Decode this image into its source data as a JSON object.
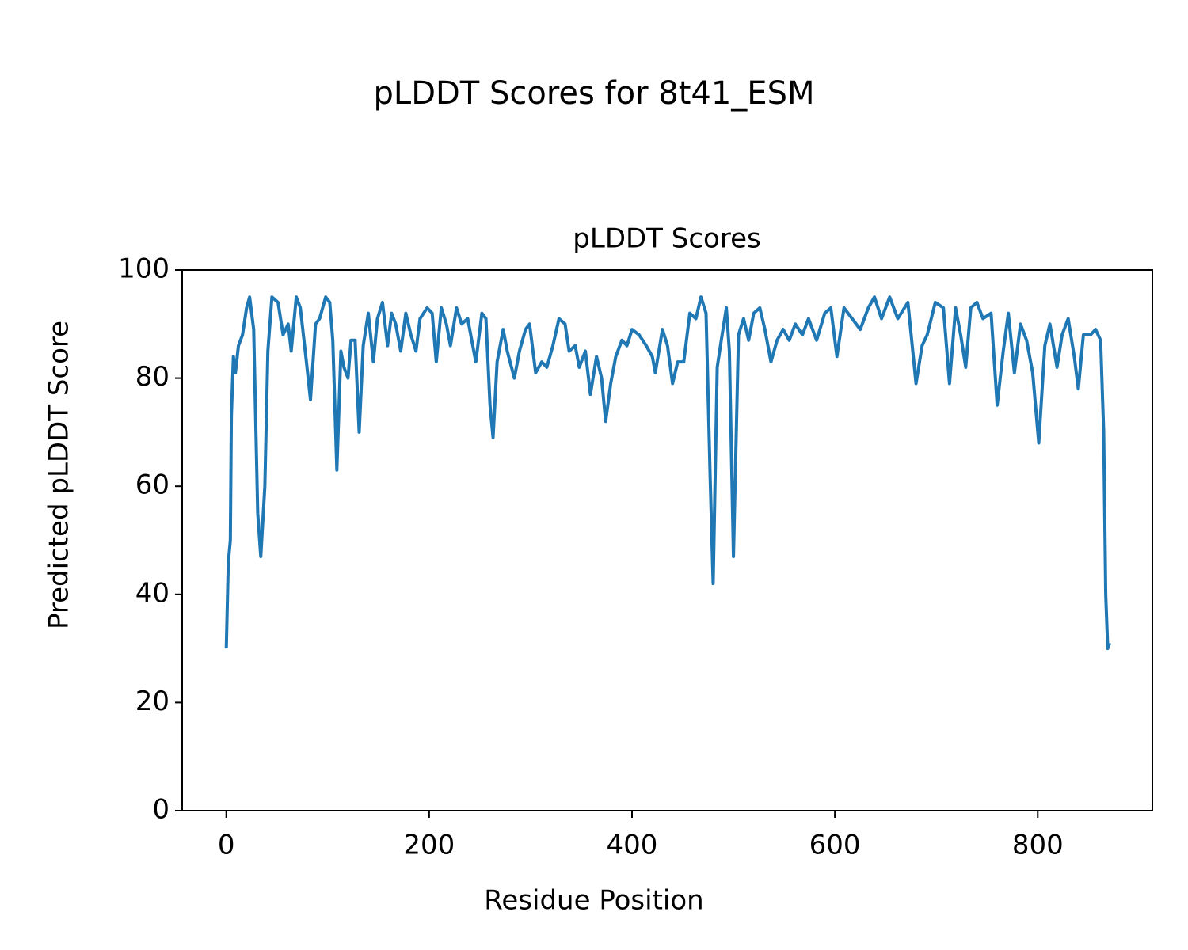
{
  "chart_data": {
    "type": "line",
    "title": "pLDDT Scores for 8t41_ESM",
    "subtitle": "pLDDT Scores",
    "x_label": "Residue Position",
    "y_label": "Predicted pLDDT Score",
    "color": "#1f77b4",
    "x": [
      0,
      2,
      4,
      5,
      7,
      9,
      12,
      16,
      20,
      23,
      27,
      31,
      34,
      38,
      41,
      45,
      51,
      56,
      61,
      64,
      69,
      73,
      79,
      83,
      88,
      92,
      98,
      102,
      105,
      109,
      113,
      116,
      120,
      123,
      127,
      131,
      135,
      140,
      145,
      149,
      154,
      159,
      163,
      167,
      172,
      177,
      182,
      187,
      191,
      198,
      203,
      207,
      212,
      217,
      221,
      227,
      232,
      238,
      246,
      252,
      256,
      260,
      263,
      267,
      273,
      277,
      284,
      289,
      295,
      299,
      305,
      311,
      316,
      322,
      328,
      334,
      338,
      344,
      348,
      354,
      359,
      365,
      370,
      374,
      379,
      384,
      390,
      395,
      400,
      407,
      414,
      420,
      423,
      430,
      435,
      440,
      445,
      451,
      457,
      463,
      468,
      473,
      477,
      480,
      484,
      488,
      493,
      496,
      500,
      505,
      510,
      515,
      520,
      526,
      531,
      537,
      543,
      549,
      555,
      561,
      568,
      574,
      582,
      590,
      596,
      602,
      609,
      617,
      625,
      633,
      639,
      646,
      654,
      662,
      672,
      680,
      686,
      691,
      699,
      707,
      713,
      719,
      724,
      729,
      734,
      740,
      746,
      754,
      760,
      766,
      771,
      777,
      783,
      789,
      795,
      801,
      807,
      812,
      819,
      824,
      830,
      836,
      840,
      845,
      852,
      857,
      862,
      865,
      867,
      869,
      871
    ],
    "values": [
      30,
      46,
      50,
      73,
      84,
      81,
      86,
      88,
      93,
      95,
      89,
      55,
      47,
      60,
      85,
      95,
      94,
      88,
      90,
      85,
      95,
      93,
      83,
      76,
      90,
      91,
      95,
      94,
      87,
      63,
      85,
      82,
      80,
      87,
      87,
      70,
      86,
      92,
      83,
      91,
      94,
      86,
      92,
      90,
      85,
      92,
      88,
      85,
      91,
      93,
      92,
      83,
      93,
      90,
      86,
      93,
      90,
      91,
      83,
      92,
      91,
      75,
      69,
      83,
      89,
      85,
      80,
      85,
      89,
      90,
      81,
      83,
      82,
      86,
      91,
      90,
      85,
      86,
      82,
      85,
      77,
      84,
      80,
      72,
      79,
      84,
      87,
      86,
      89,
      88,
      86,
      84,
      81,
      89,
      86,
      79,
      83,
      83,
      92,
      91,
      95,
      92,
      62,
      42,
      82,
      87,
      93,
      85,
      47,
      88,
      91,
      87,
      92,
      93,
      89,
      83,
      87,
      89,
      87,
      90,
      88,
      91,
      87,
      92,
      93,
      84,
      93,
      91,
      89,
      93,
      95,
      91,
      95,
      91,
      94,
      79,
      86,
      88,
      94,
      93,
      79,
      93,
      88,
      82,
      93,
      94,
      91,
      92,
      75,
      85,
      92,
      81,
      90,
      87,
      81,
      68,
      86,
      90,
      82,
      88,
      91,
      84,
      78,
      88,
      88,
      89,
      87,
      70,
      40,
      30,
      31
    ],
    "xlim": [
      -43.5,
      913
    ],
    "ylim": [
      0,
      100
    ],
    "xticks": [
      0,
      200,
      400,
      600,
      800
    ],
    "yticks": [
      0,
      20,
      40,
      60,
      80,
      100
    ]
  }
}
